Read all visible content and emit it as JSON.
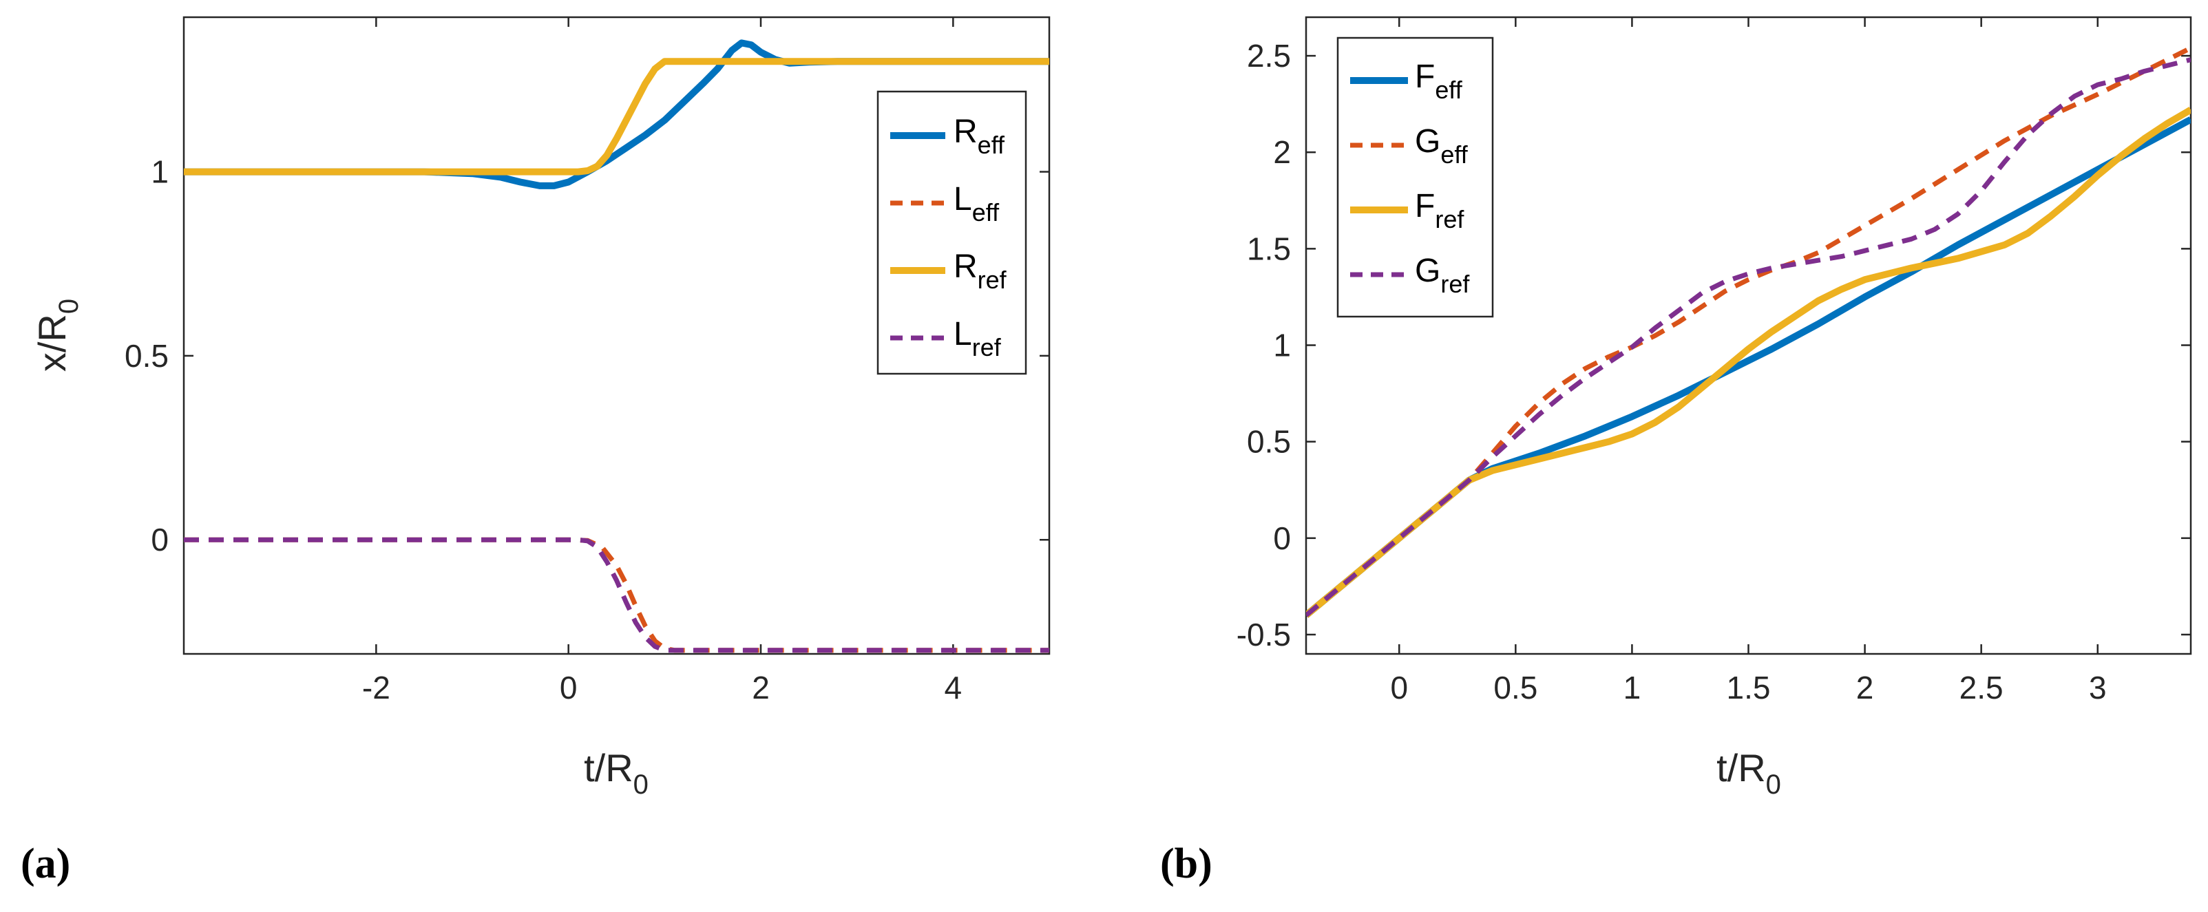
{
  "chart_data": [
    {
      "type": "line",
      "panel_label": "(a)",
      "xlabel": {
        "main": "t/R",
        "sub": "0"
      },
      "ylabel": {
        "main": "x/R",
        "sub": "0"
      },
      "xlim": [
        -4,
        5
      ],
      "ylim": [
        -0.31,
        1.42
      ],
      "xticks": [
        -2,
        0,
        2,
        4
      ],
      "xtick_labels": [
        "-2",
        "0",
        "2",
        "4"
      ],
      "yticks": [
        0,
        0.5,
        1
      ],
      "ytick_labels": [
        "0",
        "0.5",
        "1"
      ],
      "legend_position": "right",
      "series": [
        {
          "name": "R",
          "sub": "eff",
          "color": "#0072BD",
          "dash": "solid",
          "points": [
            [
              -4,
              1
            ],
            [
              -1.5,
              1
            ],
            [
              -1,
              0.995
            ],
            [
              -0.7,
              0.985
            ],
            [
              -0.5,
              0.972
            ],
            [
              -0.3,
              0.962
            ],
            [
              -0.15,
              0.962
            ],
            [
              0,
              0.972
            ],
            [
              0.2,
              1.0
            ],
            [
              0.4,
              1.03
            ],
            [
              0.6,
              1.065
            ],
            [
              0.8,
              1.1
            ],
            [
              1.0,
              1.14
            ],
            [
              1.2,
              1.19
            ],
            [
              1.4,
              1.24
            ],
            [
              1.55,
              1.28
            ],
            [
              1.7,
              1.33
            ],
            [
              1.8,
              1.35
            ],
            [
              1.9,
              1.345
            ],
            [
              2.0,
              1.325
            ],
            [
              2.15,
              1.305
            ],
            [
              2.3,
              1.295
            ],
            [
              2.5,
              1.298
            ],
            [
              2.8,
              1.3
            ],
            [
              5,
              1.3
            ]
          ]
        },
        {
          "name": "L",
          "sub": "eff",
          "color": "#D95319",
          "dash": "dashed",
          "points": [
            [
              -4,
              0
            ],
            [
              0,
              0
            ],
            [
              0.2,
              -0.002
            ],
            [
              0.35,
              -0.02
            ],
            [
              0.5,
              -0.07
            ],
            [
              0.6,
              -0.12
            ],
            [
              0.7,
              -0.18
            ],
            [
              0.8,
              -0.235
            ],
            [
              0.9,
              -0.275
            ],
            [
              1.0,
              -0.295
            ],
            [
              1.1,
              -0.3
            ],
            [
              1.3,
              -0.3
            ],
            [
              5,
              -0.3
            ]
          ]
        },
        {
          "name": "R",
          "sub": "ref",
          "color": "#EDB120",
          "dash": "solid",
          "points": [
            [
              -4,
              1
            ],
            [
              0.1,
              1
            ],
            [
              0.2,
              1.003
            ],
            [
              0.3,
              1.015
            ],
            [
              0.4,
              1.045
            ],
            [
              0.5,
              1.09
            ],
            [
              0.6,
              1.14
            ],
            [
              0.7,
              1.19
            ],
            [
              0.8,
              1.24
            ],
            [
              0.9,
              1.28
            ],
            [
              1.0,
              1.3
            ],
            [
              5,
              1.3
            ]
          ]
        },
        {
          "name": "L",
          "sub": "ref",
          "color": "#7E2F8E",
          "dash": "dashed",
          "points": [
            [
              -4,
              0
            ],
            [
              0.1,
              0
            ],
            [
              0.2,
              -0.003
            ],
            [
              0.3,
              -0.02
            ],
            [
              0.4,
              -0.06
            ],
            [
              0.5,
              -0.11
            ],
            [
              0.6,
              -0.17
            ],
            [
              0.7,
              -0.225
            ],
            [
              0.8,
              -0.265
            ],
            [
              0.9,
              -0.29
            ],
            [
              1.0,
              -0.3
            ],
            [
              5,
              -0.3
            ]
          ]
        }
      ]
    },
    {
      "type": "line",
      "panel_label": "(b)",
      "xlabel": {
        "main": "t/R",
        "sub": "0"
      },
      "ylabel": {
        "main": "",
        "sub": ""
      },
      "xlim": [
        -0.4,
        3.4
      ],
      "ylim": [
        -0.6,
        2.7
      ],
      "xticks": [
        0,
        0.5,
        1,
        1.5,
        2,
        2.5,
        3
      ],
      "xtick_labels": [
        "0",
        "0.5",
        "1",
        "1.5",
        "2",
        "2.5",
        "3"
      ],
      "yticks": [
        -0.5,
        0,
        0.5,
        1,
        1.5,
        2,
        2.5
      ],
      "ytick_labels": [
        "-0.5",
        "0",
        "0.5",
        "1",
        "1.5",
        "2",
        "2.5"
      ],
      "legend_position": "top-left",
      "series": [
        {
          "name": "F",
          "sub": "eff",
          "color": "#0072BD",
          "dash": "solid",
          "points": [
            [
              -0.4,
              -0.4
            ],
            [
              0,
              0
            ],
            [
              0.2,
              0.2
            ],
            [
              0.3,
              0.3
            ],
            [
              0.4,
              0.36
            ],
            [
              0.6,
              0.44
            ],
            [
              0.8,
              0.53
            ],
            [
              1.0,
              0.63
            ],
            [
              1.2,
              0.74
            ],
            [
              1.4,
              0.86
            ],
            [
              1.6,
              0.98
            ],
            [
              1.8,
              1.11
            ],
            [
              2.0,
              1.25
            ],
            [
              2.2,
              1.38
            ],
            [
              2.4,
              1.52
            ],
            [
              2.6,
              1.65
            ],
            [
              2.8,
              1.78
            ],
            [
              3.0,
              1.91
            ],
            [
              3.2,
              2.04
            ],
            [
              3.4,
              2.17
            ]
          ]
        },
        {
          "name": "G",
          "sub": "eff",
          "color": "#D95319",
          "dash": "dashed",
          "points": [
            [
              -0.4,
              -0.4
            ],
            [
              0,
              0
            ],
            [
              0.2,
              0.2
            ],
            [
              0.3,
              0.3
            ],
            [
              0.4,
              0.44
            ],
            [
              0.5,
              0.58
            ],
            [
              0.6,
              0.7
            ],
            [
              0.7,
              0.8
            ],
            [
              0.8,
              0.88
            ],
            [
              0.9,
              0.94
            ],
            [
              1.0,
              0.99
            ],
            [
              1.1,
              1.05
            ],
            [
              1.2,
              1.12
            ],
            [
              1.3,
              1.2
            ],
            [
              1.4,
              1.28
            ],
            [
              1.5,
              1.34
            ],
            [
              1.6,
              1.39
            ],
            [
              1.7,
              1.43
            ],
            [
              1.8,
              1.48
            ],
            [
              1.9,
              1.55
            ],
            [
              2.0,
              1.62
            ],
            [
              2.2,
              1.76
            ],
            [
              2.4,
              1.91
            ],
            [
              2.6,
              2.06
            ],
            [
              2.8,
              2.19
            ],
            [
              3.0,
              2.3
            ],
            [
              3.2,
              2.42
            ],
            [
              3.4,
              2.54
            ]
          ]
        },
        {
          "name": "F",
          "sub": "ref",
          "color": "#EDB120",
          "dash": "solid",
          "points": [
            [
              -0.4,
              -0.4
            ],
            [
              0,
              0
            ],
            [
              0.2,
              0.2
            ],
            [
              0.3,
              0.3
            ],
            [
              0.4,
              0.35
            ],
            [
              0.5,
              0.38
            ],
            [
              0.6,
              0.41
            ],
            [
              0.7,
              0.44
            ],
            [
              0.8,
              0.47
            ],
            [
              0.9,
              0.5
            ],
            [
              1.0,
              0.54
            ],
            [
              1.1,
              0.6
            ],
            [
              1.2,
              0.68
            ],
            [
              1.3,
              0.78
            ],
            [
              1.4,
              0.88
            ],
            [
              1.5,
              0.98
            ],
            [
              1.6,
              1.07
            ],
            [
              1.7,
              1.15
            ],
            [
              1.8,
              1.23
            ],
            [
              1.9,
              1.29
            ],
            [
              2.0,
              1.34
            ],
            [
              2.2,
              1.4
            ],
            [
              2.4,
              1.45
            ],
            [
              2.6,
              1.52
            ],
            [
              2.7,
              1.58
            ],
            [
              2.8,
              1.67
            ],
            [
              2.9,
              1.77
            ],
            [
              3.0,
              1.88
            ],
            [
              3.1,
              1.98
            ],
            [
              3.2,
              2.07
            ],
            [
              3.3,
              2.15
            ],
            [
              3.4,
              2.22
            ]
          ]
        },
        {
          "name": "G",
          "sub": "ref",
          "color": "#7E2F8E",
          "dash": "dashed",
          "points": [
            [
              -0.4,
              -0.4
            ],
            [
              0,
              0
            ],
            [
              0.2,
              0.2
            ],
            [
              0.3,
              0.3
            ],
            [
              0.4,
              0.42
            ],
            [
              0.5,
              0.53
            ],
            [
              0.6,
              0.64
            ],
            [
              0.7,
              0.74
            ],
            [
              0.8,
              0.83
            ],
            [
              0.9,
              0.91
            ],
            [
              1.0,
              0.99
            ],
            [
              1.1,
              1.09
            ],
            [
              1.2,
              1.18
            ],
            [
              1.3,
              1.27
            ],
            [
              1.4,
              1.33
            ],
            [
              1.5,
              1.37
            ],
            [
              1.6,
              1.4
            ],
            [
              1.7,
              1.42
            ],
            [
              1.8,
              1.44
            ],
            [
              1.9,
              1.46
            ],
            [
              2.0,
              1.49
            ],
            [
              2.1,
              1.52
            ],
            [
              2.2,
              1.55
            ],
            [
              2.3,
              1.6
            ],
            [
              2.4,
              1.68
            ],
            [
              2.5,
              1.8
            ],
            [
              2.6,
              1.95
            ],
            [
              2.7,
              2.09
            ],
            [
              2.8,
              2.2
            ],
            [
              2.9,
              2.29
            ],
            [
              3.0,
              2.35
            ],
            [
              3.1,
              2.38
            ],
            [
              3.2,
              2.42
            ],
            [
              3.3,
              2.45
            ],
            [
              3.4,
              2.48
            ]
          ]
        }
      ]
    }
  ]
}
